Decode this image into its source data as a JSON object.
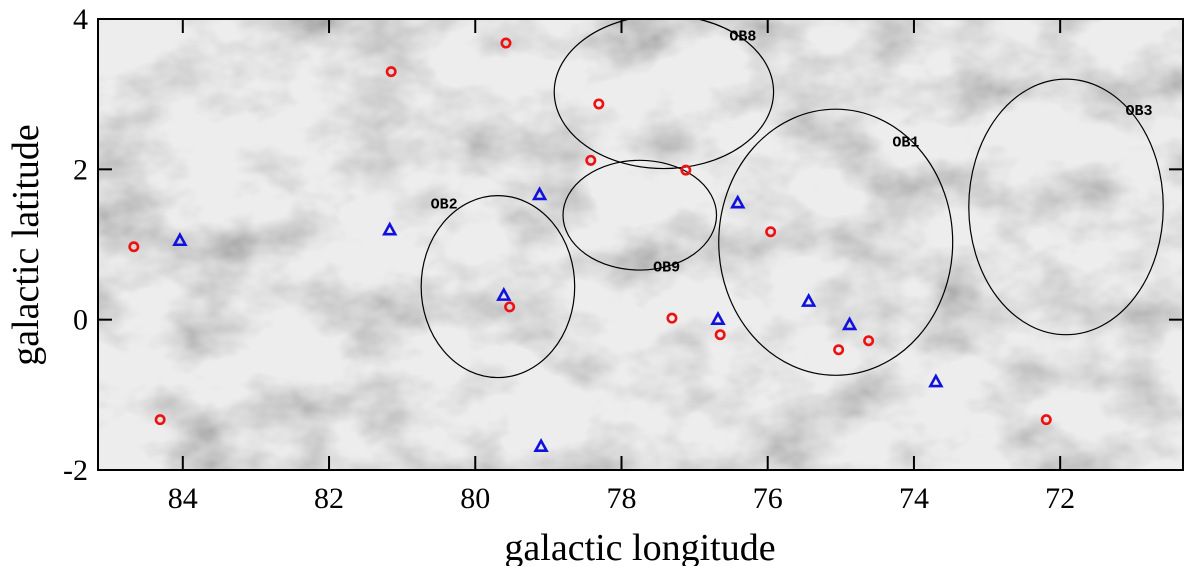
{
  "chart_data": {
    "type": "scatter",
    "x_label": "galactic longitude",
    "y_label": "galactic latitude",
    "xlim": [
      85.16,
      70.32
    ],
    "ylim": [
      -2,
      4
    ],
    "xticks": [
      84,
      82,
      80,
      78,
      76,
      74,
      72
    ],
    "yticks": [
      4,
      2,
      0,
      -2
    ],
    "series": [
      {
        "marker": "circle",
        "color": "#ee1111",
        "x": [
          84.67,
          84.31,
          81.15,
          79.58,
          78.31,
          78.42,
          77.12,
          79.53,
          77.31,
          76.65,
          75.96,
          75.03,
          74.62,
          72.19
        ],
        "values": [
          0.97,
          -1.33,
          3.3,
          3.68,
          2.87,
          2.12,
          1.99,
          0.17,
          0.02,
          -0.2,
          1.17,
          -0.4,
          -0.28,
          -1.33
        ]
      },
      {
        "marker": "triangle",
        "color": "#1111dd",
        "x": [
          84.04,
          81.17,
          79.12,
          79.61,
          76.68,
          76.41,
          75.44,
          74.88,
          73.7,
          79.1
        ],
        "values": [
          1.05,
          1.19,
          1.66,
          0.32,
          0.0,
          1.55,
          0.24,
          -0.07,
          -0.83,
          -1.69
        ]
      }
    ],
    "regions": [
      {
        "label": "OB8",
        "x": 77.42,
        "y": 3.03,
        "rx": 1.5,
        "ry": 1.02
      },
      {
        "label": "OB9",
        "x": 77.75,
        "y": 1.39,
        "rx": 1.05,
        "ry": 0.73
      },
      {
        "label": "OB2",
        "x": 79.69,
        "y": 0.44,
        "rx": 1.05,
        "ry": 1.21
      },
      {
        "label": "OB1",
        "x": 75.07,
        "y": 1.03,
        "rx": 1.6,
        "ry": 1.77
      },
      {
        "label": "OB3",
        "x": 71.92,
        "y": 1.5,
        "rx": 1.33,
        "ry": 1.7
      }
    ]
  }
}
